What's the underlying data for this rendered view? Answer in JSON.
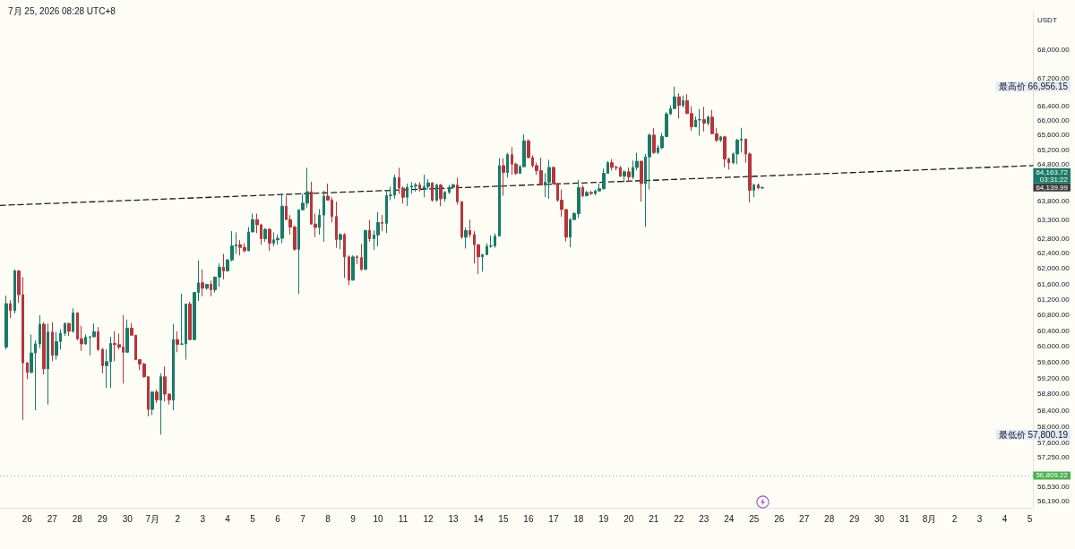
{
  "chart_data": {
    "type": "candlestick",
    "title": "7月 25, 2026 08:28 UTC+8",
    "ylabel": "USDT",
    "log": true,
    "x": [
      "2026-06-25T04:00",
      "2026-06-25T08:00",
      "2026-06-25T12:00",
      "2026-06-25T16:00",
      "2026-06-25T20:00",
      "2026-06-26T00:00",
      "2026-06-26T04:00",
      "2026-06-26T08:00",
      "2026-06-26T12:00",
      "2026-06-26T16:00",
      "2026-06-26T20:00",
      "2026-06-27T00:00",
      "2026-06-27T04:00",
      "2026-06-27T08:00",
      "2026-06-27T12:00",
      "2026-06-27T16:00",
      "2026-06-27T20:00",
      "2026-06-28T00:00",
      "2026-06-28T04:00",
      "2026-06-28T08:00",
      "2026-06-28T12:00",
      "2026-06-28T16:00",
      "2026-06-28T20:00",
      "2026-06-29T00:00",
      "2026-06-29T04:00",
      "2026-06-29T08:00",
      "2026-06-29T12:00",
      "2026-06-29T16:00",
      "2026-06-29T20:00",
      "2026-06-30T00:00",
      "2026-06-30T04:00",
      "2026-06-30T08:00",
      "2026-06-30T12:00",
      "2026-06-30T16:00",
      "2026-06-30T20:00",
      "2026-07-01T00:00",
      "2026-07-01T04:00",
      "2026-07-01T08:00",
      "2026-07-01T12:00",
      "2026-07-01T16:00",
      "2026-07-01T20:00",
      "2026-07-02T00:00",
      "2026-07-02T04:00",
      "2026-07-02T08:00",
      "2026-07-02T12:00",
      "2026-07-02T16:00",
      "2026-07-02T20:00",
      "2026-07-03T00:00",
      "2026-07-03T04:00",
      "2026-07-03T08:00",
      "2026-07-03T12:00",
      "2026-07-03T16:00",
      "2026-07-03T20:00",
      "2026-07-04T00:00",
      "2026-07-04T04:00",
      "2026-07-04T08:00",
      "2026-07-04T12:00",
      "2026-07-04T16:00",
      "2026-07-04T20:00",
      "2026-07-05T00:00",
      "2026-07-05T04:00",
      "2026-07-05T08:00",
      "2026-07-05T12:00",
      "2026-07-05T16:00",
      "2026-07-05T20:00",
      "2026-07-06T00:00",
      "2026-07-06T04:00",
      "2026-07-06T08:00",
      "2026-07-06T12:00",
      "2026-07-06T16:00",
      "2026-07-06T20:00",
      "2026-07-07T00:00",
      "2026-07-07T04:00",
      "2026-07-07T08:00",
      "2026-07-07T12:00",
      "2026-07-07T16:00",
      "2026-07-07T20:00",
      "2026-07-08T00:00",
      "2026-07-08T04:00",
      "2026-07-08T08:00",
      "2026-07-08T12:00",
      "2026-07-08T16:00",
      "2026-07-08T20:00",
      "2026-07-09T00:00",
      "2026-07-09T04:00",
      "2026-07-09T08:00",
      "2026-07-09T12:00",
      "2026-07-09T16:00",
      "2026-07-09T20:00",
      "2026-07-10T00:00",
      "2026-07-10T04:00",
      "2026-07-10T08:00",
      "2026-07-10T12:00",
      "2026-07-10T16:00",
      "2026-07-10T20:00",
      "2026-07-11T00:00",
      "2026-07-11T04:00",
      "2026-07-11T08:00",
      "2026-07-11T12:00",
      "2026-07-11T16:00",
      "2026-07-11T20:00",
      "2026-07-12T00:00",
      "2026-07-12T04:00",
      "2026-07-12T08:00",
      "2026-07-12T12:00",
      "2026-07-12T16:00",
      "2026-07-12T20:00",
      "2026-07-13T00:00",
      "2026-07-13T04:00",
      "2026-07-13T08:00",
      "2026-07-13T12:00",
      "2026-07-13T16:00",
      "2026-07-13T20:00",
      "2026-07-14T00:00",
      "2026-07-14T04:00",
      "2026-07-14T08:00",
      "2026-07-14T12:00",
      "2026-07-14T16:00",
      "2026-07-14T20:00",
      "2026-07-15T00:00",
      "2026-07-15T04:00",
      "2026-07-15T08:00",
      "2026-07-15T12:00",
      "2026-07-15T16:00",
      "2026-07-15T20:00",
      "2026-07-16T00:00",
      "2026-07-16T04:00",
      "2026-07-16T08:00",
      "2026-07-16T12:00",
      "2026-07-16T16:00",
      "2026-07-16T20:00",
      "2026-07-17T00:00",
      "2026-07-17T04:00",
      "2026-07-17T08:00",
      "2026-07-17T12:00",
      "2026-07-17T16:00",
      "2026-07-17T20:00",
      "2026-07-18T00:00",
      "2026-07-18T04:00",
      "2026-07-18T08:00",
      "2026-07-18T12:00",
      "2026-07-18T16:00",
      "2026-07-18T20:00",
      "2026-07-19T00:00",
      "2026-07-19T04:00",
      "2026-07-19T08:00",
      "2026-07-19T12:00",
      "2026-07-19T16:00",
      "2026-07-19T20:00",
      "2026-07-20T00:00",
      "2026-07-20T04:00",
      "2026-07-20T08:00",
      "2026-07-20T12:00",
      "2026-07-20T16:00",
      "2026-07-20T20:00",
      "2026-07-21T00:00",
      "2026-07-21T04:00",
      "2026-07-21T08:00",
      "2026-07-21T12:00",
      "2026-07-21T16:00",
      "2026-07-21T20:00",
      "2026-07-22T00:00",
      "2026-07-22T04:00",
      "2026-07-22T08:00",
      "2026-07-22T12:00",
      "2026-07-22T16:00",
      "2026-07-22T20:00",
      "2026-07-23T00:00",
      "2026-07-23T04:00",
      "2026-07-23T08:00",
      "2026-07-23T12:00",
      "2026-07-23T16:00",
      "2026-07-23T20:00",
      "2026-07-24T00:00",
      "2026-07-24T04:00",
      "2026-07-24T08:00",
      "2026-07-24T12:00",
      "2026-07-24T16:00",
      "2026-07-24T20:00",
      "2026-07-25T00:00",
      "2026-07-25T04:00",
      "2026-07-25T08:00"
    ],
    "ohlc": [
      [
        59980,
        61300,
        59920,
        61090
      ],
      [
        61090,
        61180,
        60720,
        60910
      ],
      [
        60910,
        61980,
        60840,
        61940
      ],
      [
        61940,
        61960,
        61110,
        61320
      ],
      [
        61320,
        61780,
        58160,
        59580
      ],
      [
        59580,
        59600,
        59170,
        59340
      ],
      [
        59340,
        60300,
        59320,
        59830
      ],
      [
        59830,
        60150,
        58400,
        60060
      ],
      [
        60060,
        60790,
        59950,
        60560
      ],
      [
        60560,
        60610,
        59290,
        59430
      ],
      [
        59430,
        60580,
        58540,
        60360
      ],
      [
        60360,
        60610,
        59620,
        59770
      ],
      [
        59770,
        60360,
        59660,
        60120
      ],
      [
        60120,
        60430,
        59920,
        60330
      ],
      [
        60330,
        60610,
        60260,
        60580
      ],
      [
        60580,
        60600,
        60260,
        60380
      ],
      [
        60380,
        60970,
        60340,
        60850
      ],
      [
        60850,
        60870,
        60150,
        60190
      ],
      [
        60190,
        60520,
        59880,
        60060
      ],
      [
        60060,
        60300,
        60040,
        60230
      ],
      [
        60230,
        60260,
        59770,
        60240
      ],
      [
        60240,
        60580,
        60230,
        60370
      ],
      [
        60370,
        60490,
        59880,
        59920
      ],
      [
        59920,
        59960,
        59320,
        59510
      ],
      [
        59510,
        59920,
        58950,
        59610
      ],
      [
        59610,
        60240,
        58950,
        60070
      ],
      [
        60070,
        60380,
        59620,
        60040
      ],
      [
        60040,
        60320,
        59920,
        59980
      ],
      [
        59980,
        60800,
        59060,
        59850
      ],
      [
        59850,
        60680,
        59840,
        60460
      ],
      [
        60460,
        60590,
        60270,
        60280
      ],
      [
        60280,
        60290,
        59650,
        59660
      ],
      [
        59660,
        59670,
        59400,
        59550
      ],
      [
        59550,
        59580,
        59210,
        59230
      ],
      [
        59230,
        59240,
        58250,
        58420
      ],
      [
        58420,
        58870,
        58280,
        58850
      ],
      [
        58850,
        58910,
        58580,
        58650
      ],
      [
        58650,
        59320,
        57800.19,
        59230
      ],
      [
        59230,
        59490,
        58620,
        58800
      ],
      [
        58800,
        58810,
        58540,
        58650
      ],
      [
        58650,
        60570,
        58400,
        60170
      ],
      [
        60170,
        60380,
        59850,
        60050
      ],
      [
        60050,
        61350,
        60040,
        60060
      ],
      [
        60060,
        61090,
        59660,
        61080
      ],
      [
        61080,
        61140,
        60150,
        60170
      ],
      [
        60170,
        61390,
        60160,
        61380
      ],
      [
        61380,
        62220,
        61160,
        61630
      ],
      [
        61630,
        61980,
        61280,
        61490
      ],
      [
        61490,
        61600,
        61450,
        61590
      ],
      [
        61590,
        61690,
        61280,
        61450
      ],
      [
        61450,
        61790,
        61380,
        61780
      ],
      [
        61780,
        62140,
        61530,
        62040
      ],
      [
        62040,
        62390,
        61720,
        61940
      ],
      [
        61940,
        62250,
        61930,
        62230
      ],
      [
        62230,
        62990,
        62190,
        62600
      ],
      [
        62600,
        62960,
        62390,
        62630
      ],
      [
        62630,
        62750,
        62350,
        62560
      ],
      [
        62560,
        62670,
        62430,
        62470
      ],
      [
        62470,
        63100,
        62460,
        62970
      ],
      [
        62970,
        63460,
        62960,
        63300
      ],
      [
        63300,
        63460,
        62940,
        63160
      ],
      [
        63160,
        63190,
        62630,
        62790
      ],
      [
        62790,
        63070,
        62710,
        63040
      ],
      [
        63040,
        63070,
        62470,
        62670
      ],
      [
        62670,
        62960,
        62590,
        62760
      ],
      [
        62760,
        62900,
        62630,
        62800
      ],
      [
        62800,
        64000,
        62670,
        63660
      ],
      [
        63660,
        63940,
        63290,
        63300
      ],
      [
        63300,
        63420,
        62900,
        63100
      ],
      [
        63100,
        63140,
        62470,
        62510
      ],
      [
        62510,
        63570,
        61340,
        63560
      ],
      [
        63560,
        63990,
        63550,
        63740
      ],
      [
        63740,
        64700,
        63620,
        64050
      ],
      [
        64050,
        64320,
        63170,
        63180
      ],
      [
        63180,
        63460,
        62830,
        63090
      ],
      [
        63090,
        63580,
        62900,
        63420
      ],
      [
        63420,
        64080,
        62710,
        63930
      ],
      [
        63930,
        64270,
        63810,
        63820
      ],
      [
        63820,
        63900,
        63220,
        63380
      ],
      [
        63380,
        63780,
        62550,
        62770
      ],
      [
        62770,
        62940,
        62510,
        62900
      ],
      [
        62900,
        62940,
        61760,
        62310
      ],
      [
        62310,
        62350,
        61570,
        61700
      ],
      [
        61700,
        62350,
        61690,
        62310
      ],
      [
        62310,
        62350,
        62120,
        62290
      ],
      [
        62290,
        62650,
        61940,
        61980
      ],
      [
        61980,
        63020,
        61970,
        63010
      ],
      [
        63010,
        63290,
        62710,
        62790
      ],
      [
        62790,
        63010,
        62490,
        62890
      ],
      [
        62890,
        63500,
        62590,
        63220
      ],
      [
        63220,
        63420,
        62990,
        63200
      ],
      [
        63200,
        64070,
        62940,
        63940
      ],
      [
        63940,
        64190,
        63820,
        63960
      ],
      [
        63960,
        64510,
        63860,
        64430
      ],
      [
        64430,
        64700,
        63990,
        64150
      ],
      [
        64150,
        64190,
        63730,
        63900
      ],
      [
        63900,
        64270,
        63660,
        64170
      ],
      [
        64170,
        64310,
        63990,
        64200
      ],
      [
        64200,
        64290,
        64050,
        64230
      ],
      [
        64230,
        64310,
        64050,
        64130
      ],
      [
        64130,
        64510,
        63900,
        64190
      ],
      [
        64190,
        64390,
        64110,
        64290
      ],
      [
        64290,
        64300,
        63780,
        63820
      ],
      [
        63820,
        64270,
        63780,
        64230
      ],
      [
        64230,
        64260,
        63660,
        63860
      ],
      [
        63860,
        64070,
        63780,
        64030
      ],
      [
        64030,
        64230,
        63990,
        64170
      ],
      [
        64170,
        64270,
        64150,
        64230
      ],
      [
        64230,
        64430,
        63700,
        63780
      ],
      [
        63780,
        63790,
        62790,
        62830
      ],
      [
        62830,
        63090,
        62530,
        63010
      ],
      [
        63010,
        63300,
        62830,
        62900
      ],
      [
        62900,
        62990,
        62140,
        62630
      ],
      [
        62630,
        62640,
        61860,
        62310
      ],
      [
        62310,
        62380,
        61920,
        62370
      ],
      [
        62370,
        62670,
        62350,
        62590
      ],
      [
        62590,
        62880,
        62550,
        62600
      ],
      [
        62600,
        62930,
        62550,
        62860
      ],
      [
        62860,
        64960,
        62850,
        64760
      ],
      [
        64760,
        64960,
        63940,
        64570
      ],
      [
        64570,
        65110,
        64430,
        65060
      ],
      [
        65060,
        65270,
        64510,
        64800
      ],
      [
        64800,
        64840,
        64510,
        64550
      ],
      [
        64550,
        64780,
        64540,
        64730
      ],
      [
        64730,
        65620,
        64720,
        65440
      ],
      [
        65440,
        65480,
        64960,
        64980
      ],
      [
        64980,
        65040,
        64710,
        64760
      ],
      [
        64760,
        64840,
        64510,
        64620
      ],
      [
        64620,
        64980,
        64220,
        64230
      ],
      [
        64230,
        64550,
        63900,
        64310
      ],
      [
        64310,
        64920,
        63860,
        64710
      ],
      [
        64710,
        64740,
        64230,
        64270
      ],
      [
        64270,
        64290,
        63780,
        63820
      ],
      [
        63820,
        64110,
        63380,
        63570
      ],
      [
        63570,
        63580,
        62720,
        62830
      ],
      [
        62830,
        63340,
        62560,
        63300
      ],
      [
        63300,
        63500,
        63290,
        63460
      ],
      [
        63460,
        64370,
        63340,
        64160
      ],
      [
        64160,
        64230,
        63900,
        63940
      ],
      [
        63940,
        64070,
        63920,
        64030
      ],
      [
        64030,
        64070,
        63960,
        64000
      ],
      [
        64000,
        64110,
        63950,
        64070
      ],
      [
        64070,
        64270,
        64050,
        64130
      ],
      [
        64130,
        64680,
        64110,
        64550
      ],
      [
        64550,
        64880,
        64540,
        64840
      ],
      [
        64840,
        64940,
        64630,
        64710
      ],
      [
        64710,
        64760,
        64630,
        64700
      ],
      [
        64700,
        64750,
        64450,
        64470
      ],
      [
        64470,
        64630,
        64310,
        64590
      ],
      [
        64590,
        64710,
        64310,
        64450
      ],
      [
        64450,
        64900,
        64390,
        64710
      ],
      [
        64710,
        65110,
        64630,
        64880
      ],
      [
        64880,
        64890,
        63780,
        64270
      ],
      [
        64270,
        65080,
        63100,
        65000
      ],
      [
        65000,
        65640,
        64110,
        65600
      ],
      [
        65600,
        65790,
        65080,
        65120
      ],
      [
        65120,
        65330,
        65080,
        65250
      ],
      [
        65250,
        65660,
        65210,
        65560
      ],
      [
        65560,
        66240,
        65540,
        66190
      ],
      [
        66190,
        66430,
        66160,
        66340
      ],
      [
        66340,
        66956.15,
        66320,
        66670
      ],
      [
        66670,
        66770,
        66060,
        66430
      ],
      [
        66430,
        66710,
        66370,
        66560
      ],
      [
        66560,
        66750,
        66190,
        66200
      ],
      [
        66200,
        66410,
        65720,
        65830
      ],
      [
        65830,
        66120,
        65820,
        66020
      ],
      [
        66020,
        66330,
        65580,
        66030
      ],
      [
        66030,
        66390,
        65700,
        65930
      ],
      [
        65930,
        66140,
        65870,
        66100
      ],
      [
        66100,
        66300,
        65620,
        65640
      ],
      [
        65640,
        65790,
        65410,
        65460
      ],
      [
        65460,
        65580,
        65410,
        65550
      ],
      [
        65550,
        65580,
        64710,
        64940
      ],
      [
        64940,
        64980,
        64650,
        64840
      ],
      [
        64840,
        65120,
        64800,
        65080
      ],
      [
        65080,
        65500,
        64800,
        65460
      ],
      [
        65460,
        65800,
        65120,
        65490
      ],
      [
        65490,
        65500,
        64840,
        65080
      ],
      [
        65080,
        65120,
        63760,
        64090
      ],
      [
        64090,
        64270,
        63900,
        64230
      ],
      [
        64230,
        64270,
        64120,
        64150
      ],
      [
        64150,
        64190,
        64120,
        64163.72
      ]
    ],
    "colors": [
      "#1b7a67",
      "#b5363b",
      "#1b7a67",
      "#b5363b",
      "#b5363b",
      "#b5363b",
      "#1b7a67",
      "#1b7a67",
      "#1b7a67",
      "#b5363b",
      "#1b7a67",
      "#b5363b",
      "#1b7a67",
      "#1b7a67",
      "#1b7a67",
      "#b5363b",
      "#1b7a67",
      "#b5363b",
      "#b5363b",
      "#1b7a67",
      "#1b7a67",
      "#1b7a67",
      "#b5363b",
      "#b5363b",
      "#1b7a67",
      "#1b7a67",
      "#b5363b",
      "#b5363b",
      "#b5363b",
      "#1b7a67",
      "#b5363b",
      "#b5363b",
      "#b5363b",
      "#b5363b",
      "#b5363b",
      "#1b7a67",
      "#b5363b",
      "#1b7a67",
      "#b5363b",
      "#b5363b",
      "#1b7a67",
      "#b5363b",
      "#1b7a67",
      "#1b7a67",
      "#b5363b",
      "#1b7a67",
      "#1b7a67",
      "#b5363b",
      "#1b7a67",
      "#b5363b",
      "#1b7a67",
      "#1b7a67",
      "#b5363b",
      "#1b7a67",
      "#1b7a67",
      "#1b7a67",
      "#b5363b",
      "#b5363b",
      "#1b7a67",
      "#1b7a67",
      "#b5363b",
      "#b5363b",
      "#1b7a67",
      "#b5363b",
      "#1b7a67",
      "#1b7a67",
      "#1b7a67",
      "#b5363b",
      "#b5363b",
      "#b5363b",
      "#1b7a67",
      "#1b7a67",
      "#1b7a67",
      "#b5363b",
      "#b5363b",
      "#1b7a67",
      "#1b7a67",
      "#b5363b",
      "#b5363b",
      "#b5363b",
      "#1b7a67",
      "#b5363b",
      "#b5363b",
      "#1b7a67",
      "#b5363b",
      "#b5363b",
      "#1b7a67",
      "#b5363b",
      "#1b7a67",
      "#1b7a67",
      "#b5363b",
      "#1b7a67",
      "#1b7a67",
      "#1b7a67",
      "#b5363b",
      "#b5363b",
      "#1b7a67",
      "#1b7a67",
      "#1b7a67",
      "#b5363b",
      "#1b7a67",
      "#1b7a67",
      "#b5363b",
      "#1b7a67",
      "#b5363b",
      "#1b7a67",
      "#1b7a67",
      "#1b7a67",
      "#b5363b",
      "#b5363b",
      "#1b7a67",
      "#b5363b",
      "#b5363b",
      "#b5363b",
      "#1b7a67",
      "#1b7a67",
      "#1b7a67",
      "#1b7a67",
      "#1b7a67",
      "#b5363b",
      "#1b7a67",
      "#b5363b",
      "#b5363b",
      "#1b7a67",
      "#1b7a67",
      "#b5363b",
      "#b5363b",
      "#b5363b",
      "#b5363b",
      "#1b7a67",
      "#1b7a67",
      "#b5363b",
      "#b5363b",
      "#b5363b",
      "#b5363b",
      "#1b7a67",
      "#1b7a67",
      "#1b7a67",
      "#b5363b",
      "#1b7a67",
      "#b5363b",
      "#1b7a67",
      "#1b7a67",
      "#1b7a67",
      "#1b7a67",
      "#b5363b",
      "#b5363b",
      "#b5363b",
      "#1b7a67",
      "#b5363b",
      "#1b7a67",
      "#1b7a67",
      "#b5363b",
      "#1b7a67",
      "#1b7a67",
      "#b5363b",
      "#1b7a67",
      "#1b7a67",
      "#1b7a67",
      "#1b7a67",
      "#1b7a67",
      "#b5363b",
      "#1b7a67",
      "#b5363b",
      "#b5363b",
      "#1b7a67",
      "#1b7a67",
      "#b5363b",
      "#1b7a67",
      "#b5363b",
      "#b5363b",
      "#1b7a67",
      "#b5363b",
      "#b5363b",
      "#1b7a67",
      "#1b7a67",
      "#1b7a67",
      "#b5363b",
      "#b5363b",
      "#1b7a67",
      "#b5363b",
      "#1b7a67"
    ],
    "series": [
      {
        "type": "line",
        "x": [
          "2026-06-24T22:00",
          "2026-08-05T03:00"
        ],
        "values": [
          63680,
          64760
        ],
        "color": "#1e1e1e",
        "line_style": "dashed"
      }
    ],
    "xlim": [
      "2026-06-24T22:00",
      "2026-08-05T03:00"
    ],
    "xticks": [
      {
        "value": "2026-06-26",
        "label": "26"
      },
      {
        "value": "2026-06-27",
        "label": "27"
      },
      {
        "value": "2026-06-28",
        "label": "28"
      },
      {
        "value": "2026-06-29",
        "label": "29"
      },
      {
        "value": "2026-06-30",
        "label": "30"
      },
      {
        "value": "2026-07-01",
        "label": "7月"
      },
      {
        "value": "2026-07-02",
        "label": "2"
      },
      {
        "value": "2026-07-03",
        "label": "3"
      },
      {
        "value": "2026-07-04",
        "label": "4"
      },
      {
        "value": "2026-07-05",
        "label": "5"
      },
      {
        "value": "2026-07-06",
        "label": "6"
      },
      {
        "value": "2026-07-07",
        "label": "7"
      },
      {
        "value": "2026-07-08",
        "label": "8"
      },
      {
        "value": "2026-07-09",
        "label": "9"
      },
      {
        "value": "2026-07-10",
        "label": "10"
      },
      {
        "value": "2026-07-11",
        "label": "11"
      },
      {
        "value": "2026-07-12",
        "label": "12"
      },
      {
        "value": "2026-07-13",
        "label": "13"
      },
      {
        "value": "2026-07-14",
        "label": "14"
      },
      {
        "value": "2026-07-15",
        "label": "15"
      },
      {
        "value": "2026-07-16",
        "label": "16"
      },
      {
        "value": "2026-07-17",
        "label": "17"
      },
      {
        "value": "2026-07-18",
        "label": "18"
      },
      {
        "value": "2026-07-19",
        "label": "19"
      },
      {
        "value": "2026-07-20",
        "label": "20"
      },
      {
        "value": "2026-07-21",
        "label": "21"
      },
      {
        "value": "2026-07-22",
        "label": "22"
      },
      {
        "value": "2026-07-23",
        "label": "23"
      },
      {
        "value": "2026-07-24",
        "label": "24"
      },
      {
        "value": "2026-07-25",
        "label": "25"
      },
      {
        "value": "2026-07-26",
        "label": "26"
      },
      {
        "value": "2026-07-27",
        "label": "27"
      },
      {
        "value": "2026-07-28",
        "label": "28"
      },
      {
        "value": "2026-07-29",
        "label": "29"
      },
      {
        "value": "2026-07-30",
        "label": "30"
      },
      {
        "value": "2026-07-31",
        "label": "31"
      },
      {
        "value": "2026-08-01",
        "label": "8月"
      },
      {
        "value": "2026-08-02",
        "label": "2"
      },
      {
        "value": "2026-08-03",
        "label": "3"
      },
      {
        "value": "2026-08-04",
        "label": "4"
      },
      {
        "value": "2026-08-05",
        "label": "5"
      }
    ],
    "ylim": [
      56040,
      69140
    ],
    "yticks": [
      {
        "value": 68000,
        "label": "68,000.00"
      },
      {
        "value": 67200,
        "label": "67,200.00"
      },
      {
        "value": 66400,
        "label": "66,400.00"
      },
      {
        "value": 66000,
        "label": "66,000.00"
      },
      {
        "value": 65600,
        "label": "65,600.00"
      },
      {
        "value": 65200,
        "label": "65,200.00"
      },
      {
        "value": 64800,
        "label": "64,800.00"
      },
      {
        "value": 63800,
        "label": "63,800.00"
      },
      {
        "value": 63300,
        "label": "63,300.00"
      },
      {
        "value": 62800,
        "label": "62,800.00"
      },
      {
        "value": 62400,
        "label": "62,400.00"
      },
      {
        "value": 62000,
        "label": "62,000.00"
      },
      {
        "value": 61600,
        "label": "61,600.00"
      },
      {
        "value": 61200,
        "label": "61,200.00"
      },
      {
        "value": 60800,
        "label": "60,800.00"
      },
      {
        "value": 60400,
        "label": "60,400.00"
      },
      {
        "value": 60000,
        "label": "60,000.00"
      },
      {
        "value": 59600,
        "label": "59,600.00"
      },
      {
        "value": 59200,
        "label": "59,200.00"
      },
      {
        "value": 58800,
        "label": "58,800.00"
      },
      {
        "value": 58400,
        "label": "58,400.00"
      },
      {
        "value": 58000,
        "label": "58,000.00"
      },
      {
        "value": 57600,
        "label": "57,600.00"
      },
      {
        "value": 57250,
        "label": "57,250.00"
      },
      {
        "value": 56530,
        "label": "56,530.00"
      },
      {
        "value": 56190,
        "label": "56,190.00"
      }
    ],
    "ref_lines": [
      {
        "axis": "y",
        "value": 56809.22,
        "label": "56,809.22",
        "color": "#4caf50",
        "line_style": "dotted"
      }
    ],
    "annotations": [
      "最高价 66,956.15",
      "64,163.72\n03:31:22",
      "64,139.99",
      "最低价 57,800.19"
    ]
  }
}
